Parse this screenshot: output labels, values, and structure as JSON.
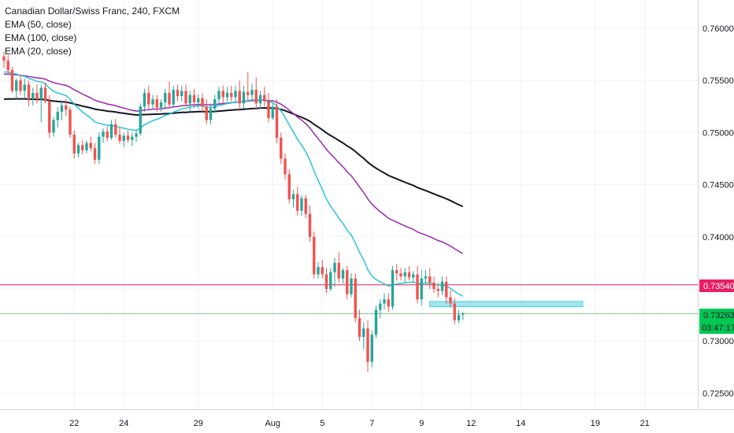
{
  "header": {
    "title": "Canadian Dollar/Swiss Franc, 240, FXCM",
    "indicators": [
      "EMA (50, close)",
      "EMA (100, close)",
      "EMA (20, close)"
    ]
  },
  "colors": {
    "bull": "#26a69a",
    "bear": "#ef5350",
    "ema20": "#26c6da",
    "ema50": "#9c27b0",
    "ema100": "#131722",
    "hline_magenta": "#e91e63",
    "hline_green": "#4caf50",
    "zone": "#80deea"
  },
  "tags": {
    "magenta_price": "0.73540",
    "green_price": "0.73263",
    "countdown": "03:47:17"
  },
  "chart_data": {
    "type": "candlestick",
    "symbol": "CADCHF",
    "timeframe": "240",
    "y_ticks": [
      "0.76000",
      "0.75500",
      "0.75000",
      "0.74500",
      "0.74000",
      "0.73500",
      "0.73000",
      "0.72500"
    ],
    "y_range": [
      0.7225,
      0.763
    ],
    "x_ticks": [
      "22",
      "24",
      "29",
      "Aug",
      "5",
      "7",
      "9",
      "12",
      "14",
      "19",
      "21"
    ],
    "x_tick_index": [
      17,
      29,
      47,
      65,
      77,
      89,
      101,
      113,
      125,
      143,
      155
    ],
    "horizontal_lines": [
      {
        "price": 0.7354,
        "color": "magenta"
      },
      {
        "price": 0.73263,
        "color": "green"
      }
    ],
    "zone": {
      "start_index": 103,
      "end_index": 140,
      "top": 0.7338,
      "bottom": 0.7333
    },
    "candles": [
      [
        0.7573,
        0.7578,
        0.7562,
        0.7569
      ],
      [
        0.7569,
        0.7574,
        0.7556,
        0.756
      ],
      [
        0.756,
        0.7563,
        0.7538,
        0.754
      ],
      [
        0.754,
        0.7552,
        0.7532,
        0.755
      ],
      [
        0.755,
        0.7556,
        0.7536,
        0.754
      ],
      [
        0.754,
        0.7552,
        0.7533,
        0.7546
      ],
      [
        0.7546,
        0.755,
        0.7525,
        0.7532
      ],
      [
        0.7532,
        0.7543,
        0.7526,
        0.7538
      ],
      [
        0.7538,
        0.7546,
        0.7528,
        0.7532
      ],
      [
        0.7532,
        0.7546,
        0.751,
        0.7543
      ],
      [
        0.7543,
        0.7548,
        0.7528,
        0.753
      ],
      [
        0.753,
        0.7536,
        0.7495,
        0.75
      ],
      [
        0.75,
        0.7515,
        0.7496,
        0.7512
      ],
      [
        0.7512,
        0.7524,
        0.7505,
        0.752
      ],
      [
        0.752,
        0.753,
        0.7512,
        0.7526
      ],
      [
        0.7526,
        0.7532,
        0.7516,
        0.7522
      ],
      [
        0.7522,
        0.7525,
        0.7495,
        0.7498
      ],
      [
        0.7498,
        0.7502,
        0.7475,
        0.748
      ],
      [
        0.748,
        0.749,
        0.7476,
        0.7488
      ],
      [
        0.7488,
        0.7493,
        0.7479,
        0.7483
      ],
      [
        0.7483,
        0.7492,
        0.748,
        0.749
      ],
      [
        0.749,
        0.7496,
        0.7482,
        0.7485
      ],
      [
        0.7485,
        0.749,
        0.747,
        0.7474
      ],
      [
        0.7474,
        0.75,
        0.747,
        0.7496
      ],
      [
        0.7496,
        0.7504,
        0.749,
        0.7501
      ],
      [
        0.7501,
        0.7506,
        0.7492,
        0.7495
      ],
      [
        0.7495,
        0.7512,
        0.7493,
        0.7508
      ],
      [
        0.7508,
        0.7513,
        0.7495,
        0.7498
      ],
      [
        0.7498,
        0.7505,
        0.7489,
        0.7492
      ],
      [
        0.7492,
        0.75,
        0.7486,
        0.7497
      ],
      [
        0.7497,
        0.7502,
        0.749,
        0.7493
      ],
      [
        0.7493,
        0.75,
        0.7487,
        0.7496
      ],
      [
        0.7496,
        0.7503,
        0.7491,
        0.7499
      ],
      [
        0.7499,
        0.7528,
        0.7497,
        0.7525
      ],
      [
        0.7525,
        0.7542,
        0.752,
        0.7538
      ],
      [
        0.7538,
        0.7545,
        0.7523,
        0.7527
      ],
      [
        0.7527,
        0.7536,
        0.7522,
        0.7532
      ],
      [
        0.7532,
        0.7536,
        0.752,
        0.7524
      ],
      [
        0.7524,
        0.7532,
        0.752,
        0.7529
      ],
      [
        0.7529,
        0.7542,
        0.7524,
        0.7538
      ],
      [
        0.7538,
        0.7549,
        0.7523,
        0.7527
      ],
      [
        0.7527,
        0.7545,
        0.7525,
        0.7541
      ],
      [
        0.7541,
        0.7546,
        0.753,
        0.7535
      ],
      [
        0.7535,
        0.7545,
        0.753,
        0.754
      ],
      [
        0.754,
        0.7546,
        0.7525,
        0.7528
      ],
      [
        0.7528,
        0.754,
        0.752,
        0.7536
      ],
      [
        0.7536,
        0.7542,
        0.7524,
        0.7529
      ],
      [
        0.7529,
        0.7537,
        0.7523,
        0.7533
      ],
      [
        0.7533,
        0.7538,
        0.752,
        0.7525
      ],
      [
        0.7525,
        0.7532,
        0.7508,
        0.7512
      ],
      [
        0.7512,
        0.7528,
        0.7508,
        0.7523
      ],
      [
        0.7523,
        0.7536,
        0.7519,
        0.7532
      ],
      [
        0.7532,
        0.7544,
        0.7526,
        0.754
      ],
      [
        0.754,
        0.7545,
        0.7528,
        0.7534
      ],
      [
        0.7534,
        0.7544,
        0.753,
        0.7538
      ],
      [
        0.7538,
        0.7545,
        0.753,
        0.7534
      ],
      [
        0.7534,
        0.7545,
        0.7528,
        0.754
      ],
      [
        0.754,
        0.755,
        0.7522,
        0.7528
      ],
      [
        0.7528,
        0.7545,
        0.7523,
        0.7539
      ],
      [
        0.7539,
        0.7558,
        0.753,
        0.7536
      ],
      [
        0.7536,
        0.7547,
        0.7532,
        0.7541
      ],
      [
        0.7541,
        0.7553,
        0.7522,
        0.7528
      ],
      [
        0.7528,
        0.754,
        0.7523,
        0.7536
      ],
      [
        0.7536,
        0.7544,
        0.7525,
        0.753
      ],
      [
        0.753,
        0.7538,
        0.751,
        0.7514
      ],
      [
        0.7514,
        0.7528,
        0.7512,
        0.7525
      ],
      [
        0.7525,
        0.7532,
        0.749,
        0.7495
      ],
      [
        0.7495,
        0.75,
        0.747,
        0.7475
      ],
      [
        0.7475,
        0.748,
        0.7455,
        0.746
      ],
      [
        0.746,
        0.7465,
        0.7432,
        0.7436
      ],
      [
        0.7436,
        0.7445,
        0.7428,
        0.7441
      ],
      [
        0.7441,
        0.7448,
        0.742,
        0.7425
      ],
      [
        0.7425,
        0.744,
        0.742,
        0.7437
      ],
      [
        0.7437,
        0.744,
        0.7418,
        0.7422
      ],
      [
        0.7422,
        0.743,
        0.7395,
        0.74
      ],
      [
        0.74,
        0.7405,
        0.736,
        0.7364
      ],
      [
        0.7364,
        0.7376,
        0.736,
        0.7371
      ],
      [
        0.7371,
        0.7378,
        0.736,
        0.7364
      ],
      [
        0.7364,
        0.737,
        0.7346,
        0.735
      ],
      [
        0.735,
        0.737,
        0.7348,
        0.7366
      ],
      [
        0.7366,
        0.738,
        0.7352,
        0.7375
      ],
      [
        0.7375,
        0.7385,
        0.7356,
        0.736
      ],
      [
        0.736,
        0.737,
        0.7355,
        0.7368
      ],
      [
        0.7368,
        0.7372,
        0.734,
        0.7345
      ],
      [
        0.7345,
        0.7365,
        0.7342,
        0.736
      ],
      [
        0.736,
        0.7365,
        0.7318,
        0.7322
      ],
      [
        0.7322,
        0.733,
        0.73,
        0.7304
      ],
      [
        0.7304,
        0.7318,
        0.7292,
        0.7312
      ],
      [
        0.7312,
        0.732,
        0.727,
        0.728
      ],
      [
        0.728,
        0.731,
        0.7275,
        0.7306
      ],
      [
        0.7306,
        0.7334,
        0.7303,
        0.733
      ],
      [
        0.733,
        0.734,
        0.7322,
        0.7336
      ],
      [
        0.7336,
        0.7346,
        0.733,
        0.734
      ],
      [
        0.734,
        0.7346,
        0.7328,
        0.7333
      ],
      [
        0.7333,
        0.7372,
        0.733,
        0.7368
      ],
      [
        0.7368,
        0.7374,
        0.7358,
        0.7365
      ],
      [
        0.7365,
        0.737,
        0.7358,
        0.7362
      ],
      [
        0.7362,
        0.737,
        0.7356,
        0.7366
      ],
      [
        0.7366,
        0.7372,
        0.7358,
        0.7361
      ],
      [
        0.7361,
        0.7367,
        0.7356,
        0.7364
      ],
      [
        0.7364,
        0.7372,
        0.7336,
        0.734
      ],
      [
        0.734,
        0.7368,
        0.7334,
        0.736
      ],
      [
        0.736,
        0.7368,
        0.7355,
        0.7362
      ],
      [
        0.7362,
        0.737,
        0.735,
        0.7356
      ],
      [
        0.7356,
        0.7362,
        0.7346,
        0.735
      ],
      [
        0.735,
        0.7356,
        0.7342,
        0.7348
      ],
      [
        0.7348,
        0.7362,
        0.7344,
        0.7357
      ],
      [
        0.7357,
        0.7362,
        0.7336,
        0.7342
      ],
      [
        0.7342,
        0.7349,
        0.7332,
        0.7336
      ],
      [
        0.7336,
        0.7341,
        0.7316,
        0.732
      ],
      [
        0.732,
        0.733,
        0.7317,
        0.7325
      ],
      [
        0.7325,
        0.7328,
        0.732,
        0.7326
      ]
    ]
  }
}
